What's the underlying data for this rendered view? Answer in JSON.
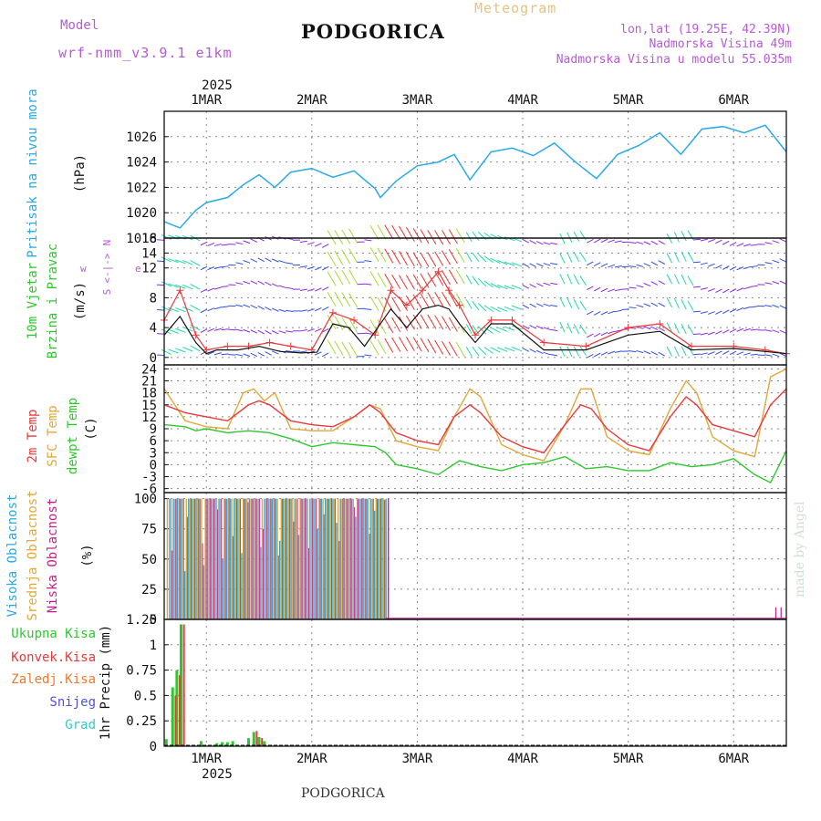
{
  "header": {
    "model_label": "Model",
    "model_name": "wrf-nmm_v3.9.1 e1km",
    "station": "PODGORICA",
    "chart_title": "Meteogram",
    "lonlat": "lon,lat (19.25E, 42.39N)",
    "elevation": "Nadmorska Visina 49m",
    "model_elevation": "Nadmorska Visina u modelu 55.035m",
    "bottom_station": "PODGORICA",
    "credit": "made by Angel"
  },
  "time_axis": {
    "year": "2025",
    "labels": [
      "1MAR",
      "2MAR",
      "3MAR",
      "4MAR",
      "5MAR",
      "6MAR"
    ],
    "range_days": [
      0.6,
      6.5
    ]
  },
  "colors": {
    "pressure": "#2aa8e8",
    "temp": "#e83a3a",
    "sfc_temp": "#e0a83a",
    "dewpt": "#2ec82e",
    "wind_speed": "#111111",
    "gust": "#e83a3a",
    "purple": "#b65ad6",
    "high_cloud": "#2aa8e8",
    "mid_cloud": "#e0a83a",
    "low_cloud": "#c81e8c",
    "total_precip": "#2ec82e",
    "conv_precip": "#e83a3a",
    "frz_precip": "#f07830",
    "snow": "#5050e0",
    "graupel": "#3ac8c8"
  },
  "chart_data": [
    {
      "type": "line",
      "panel": "pressure",
      "ylabel": "Pritisak na nivou mora",
      "unit": "(hPa)",
      "ylim": [
        1018,
        1028
      ],
      "yticks": [
        "1020",
        "1022",
        "1024",
        "1026"
      ],
      "bottom_tick": "1018",
      "series": [
        {
          "x": [
            0.6,
            0.75,
            0.9,
            1.0,
            1.2,
            1.35,
            1.5,
            1.65,
            1.8,
            2.0,
            2.2,
            2.4,
            2.6,
            2.65,
            2.8,
            3.0,
            3.2,
            3.35,
            3.5,
            3.7,
            3.9,
            4.1,
            4.3,
            4.5,
            4.7,
            4.9,
            5.1,
            5.3,
            5.5,
            5.7,
            5.9,
            6.1,
            6.3,
            6.5
          ],
          "values": [
            1019.3,
            1018.8,
            1020.2,
            1020.8,
            1021.2,
            1022.2,
            1023.0,
            1022.0,
            1023.2,
            1023.5,
            1022.8,
            1023.3,
            1021.9,
            1021.2,
            1022.5,
            1023.7,
            1024.0,
            1024.6,
            1022.6,
            1024.8,
            1025.1,
            1024.5,
            1025.5,
            1024.0,
            1022.7,
            1024.6,
            1025.3,
            1026.3,
            1024.6,
            1026.6,
            1026.8,
            1026.3,
            1026.9,
            1024.8
          ]
        }
      ]
    },
    {
      "type": "line",
      "panel": "wind",
      "ylabel": [
        "10m Vjetar",
        "Brzina i Pravac"
      ],
      "unit": "(m/s)",
      "ylim": [
        -1,
        16
      ],
      "yticks": [
        "0",
        "4",
        "8",
        "12",
        "14",
        "16"
      ],
      "direction_key": [
        "w",
        "<-|->",
        "e",
        "N",
        "S"
      ],
      "series": [
        {
          "name": "speed",
          "x": [
            0.6,
            0.75,
            0.9,
            1.0,
            1.1,
            1.3,
            1.5,
            1.7,
            1.9,
            2.05,
            2.2,
            2.35,
            2.5,
            2.6,
            2.75,
            2.9,
            3.05,
            3.2,
            3.3,
            3.4,
            3.55,
            3.7,
            3.9,
            4.2,
            4.6,
            5.0,
            5.3,
            5.6,
            6.0,
            6.3,
            6.5
          ],
          "values": [
            3.0,
            5.5,
            2.0,
            0.5,
            1.0,
            1.0,
            1.5,
            0.8,
            0.6,
            0.7,
            4.5,
            4.0,
            1.5,
            3.5,
            6.5,
            4.0,
            6.5,
            7.0,
            6.5,
            4.5,
            2.0,
            4.5,
            4.5,
            1.0,
            1.0,
            3.0,
            3.5,
            1.0,
            1.2,
            0.8,
            0.5
          ]
        },
        {
          "name": "gust",
          "x": [
            0.6,
            0.75,
            0.9,
            1.0,
            1.2,
            1.4,
            1.6,
            1.8,
            2.0,
            2.2,
            2.4,
            2.6,
            2.75,
            2.9,
            3.05,
            3.2,
            3.3,
            3.4,
            3.55,
            3.7,
            3.9,
            4.2,
            4.6,
            5.0,
            5.3,
            5.6,
            6.0,
            6.3,
            6.5
          ],
          "values": [
            5.0,
            9.0,
            3.0,
            1.0,
            1.5,
            1.5,
            2.0,
            1.5,
            1.0,
            6.0,
            5.0,
            3.0,
            9.0,
            7.0,
            9.0,
            11.5,
            9.0,
            7.0,
            3.0,
            5.0,
            5.0,
            2.0,
            1.5,
            4.0,
            4.5,
            1.5,
            1.5,
            1.0,
            0.5
          ]
        }
      ]
    },
    {
      "type": "line",
      "panel": "temperature",
      "ylabel": [
        "2m Temp",
        "SFC Temp",
        "dewpt Temp"
      ],
      "unit": "(C)",
      "ylim": [
        -7,
        25
      ],
      "yticks": [
        "-6",
        "-3",
        "0",
        "3",
        "6",
        "9",
        "12",
        "15",
        "18",
        "21",
        "24"
      ],
      "series": [
        {
          "name": "2m Temp",
          "x": [
            0.6,
            0.8,
            1.0,
            1.2,
            1.4,
            1.5,
            1.6,
            1.8,
            2.0,
            2.2,
            2.4,
            2.55,
            2.65,
            2.8,
            3.0,
            3.2,
            3.35,
            3.5,
            3.6,
            3.8,
            4.0,
            4.2,
            4.4,
            4.55,
            4.65,
            4.8,
            5.0,
            5.2,
            5.4,
            5.55,
            5.65,
            5.8,
            6.0,
            6.2,
            6.35,
            6.5
          ],
          "values": [
            15,
            13,
            12,
            11,
            15,
            16,
            15,
            11,
            10,
            9.5,
            12,
            15,
            13,
            8,
            6,
            5,
            12,
            15,
            13,
            7,
            4.5,
            3,
            10,
            15,
            14,
            9,
            5,
            3.5,
            12,
            17,
            15,
            10,
            8.5,
            7,
            15,
            19
          ]
        },
        {
          "name": "SFC Temp",
          "x": [
            0.6,
            0.8,
            1.0,
            1.2,
            1.35,
            1.45,
            1.55,
            1.65,
            1.8,
            2.0,
            2.2,
            2.4,
            2.55,
            2.65,
            2.8,
            3.0,
            3.2,
            3.35,
            3.5,
            3.6,
            3.8,
            4.0,
            4.2,
            4.4,
            4.55,
            4.65,
            4.8,
            5.0,
            5.2,
            5.4,
            5.55,
            5.65,
            5.8,
            6.0,
            6.2,
            6.35,
            6.5
          ],
          "values": [
            19,
            11,
            9.5,
            9,
            18,
            19,
            16,
            18,
            9,
            8.5,
            8.5,
            12,
            15,
            14,
            6,
            4.5,
            3.5,
            12,
            19,
            17,
            5,
            2.5,
            1,
            10,
            19,
            19,
            7,
            3.5,
            2.5,
            14,
            21,
            18,
            7,
            3.5,
            2,
            22,
            24
          ]
        },
        {
          "name": "dewpt Temp",
          "x": [
            0.6,
            0.8,
            0.9,
            1.0,
            1.2,
            1.4,
            1.6,
            1.8,
            2.0,
            2.2,
            2.4,
            2.6,
            2.7,
            2.8,
            3.0,
            3.2,
            3.4,
            3.6,
            3.8,
            4.0,
            4.2,
            4.4,
            4.6,
            4.8,
            5.0,
            5.2,
            5.4,
            5.6,
            5.8,
            6.0,
            6.2,
            6.35,
            6.5
          ],
          "values": [
            10,
            9.5,
            8.5,
            9,
            8,
            8.5,
            8,
            6.5,
            4.5,
            5.5,
            5,
            4.5,
            3,
            0,
            -1,
            -2.5,
            1,
            -0.5,
            -1.5,
            0,
            0.5,
            2,
            -1,
            -0.5,
            -1.5,
            -1.5,
            0.5,
            -0.5,
            0,
            1.5,
            -2.5,
            -4.5,
            3.5
          ]
        }
      ]
    },
    {
      "type": "bar",
      "panel": "clouds",
      "ylabel": [
        "Visoka Oblacnost",
        "Srednja Oblacnost",
        "Niska Oblacnost"
      ],
      "unit": "(%)",
      "ylim": [
        0,
        105
      ],
      "yticks": [
        "0",
        "25",
        "50",
        "75",
        "100"
      ],
      "cloud_end_day": 2.7,
      "late_low_cloud": {
        "x": [
          6.4,
          6.45
        ],
        "value": 10
      }
    },
    {
      "type": "bar",
      "panel": "precip",
      "legend": [
        "Ukupna Kisa",
        "Konvek.Kisa",
        "Zaledj.Kisa",
        "Snijeg",
        "Grad"
      ],
      "ylabel": "1hr Precip (mm)",
      "ylim": [
        0,
        1.25
      ],
      "yticks": [
        "0",
        "0.25",
        "0.5",
        "0.75",
        "1",
        "1.25"
      ],
      "series": [
        {
          "name": "Ukupna Kisa",
          "x": [
            0.62,
            0.68,
            0.72,
            0.76,
            0.95,
            1.1,
            1.15,
            1.2,
            1.25,
            1.4,
            1.45,
            1.5,
            1.55
          ],
          "values": [
            0.07,
            0.58,
            0.75,
            1.2,
            0.05,
            0.03,
            0.04,
            0.04,
            0.05,
            0.08,
            0.14,
            0.09,
            0.05
          ]
        },
        {
          "name": "Konvek.Kisa",
          "x": [
            0.69,
            0.73,
            0.77,
            1.46,
            1.51
          ],
          "values": [
            0.5,
            0.7,
            1.2,
            0.15,
            0.08
          ]
        }
      ]
    }
  ]
}
